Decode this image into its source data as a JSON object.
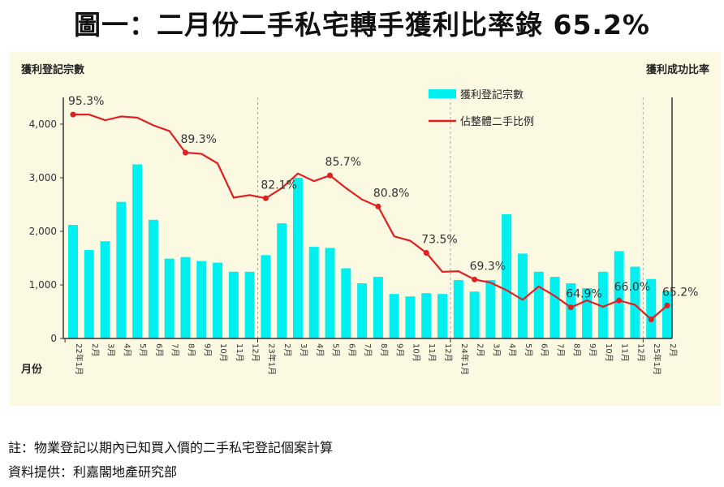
{
  "title": "圖一：二月份二手私宅轉手獲利比率錄 65.2%",
  "chart_data": {
    "type": "bar+line",
    "left_axis_label": "獲利登記宗數",
    "right_axis_label": "獲利成功比率",
    "x_axis_label": "月份",
    "ylim_left": [
      0,
      4500
    ],
    "ylim_right": [
      60,
      98
    ],
    "yticks_left": [
      "0",
      "1,000",
      "2,000",
      "3,000",
      "4,000"
    ],
    "categories": [
      "22年1月",
      "2月",
      "3月",
      "4月",
      "5月",
      "6月",
      "7月",
      "8月",
      "9月",
      "10月",
      "11月",
      "12月",
      "23年1月",
      "2月",
      "3月",
      "4月",
      "5月",
      "6月",
      "7月",
      "8月",
      "9月",
      "10月",
      "11月",
      "12月",
      "24年1月",
      "2月",
      "3月",
      "4月",
      "5月",
      "6月",
      "7月",
      "8月",
      "9月",
      "10月",
      "11月",
      "12月",
      "25年1月",
      "2月"
    ],
    "series": [
      {
        "name": "獲利登記宗數",
        "type": "bar",
        "color": "#00f0f0",
        "axis": "left",
        "values": [
          2120,
          1650,
          1815,
          2550,
          3250,
          2215,
          1490,
          1520,
          1445,
          1415,
          1245,
          1245,
          1555,
          2150,
          3000,
          1710,
          1690,
          1310,
          1030,
          1150,
          830,
          785,
          845,
          830,
          1090,
          875,
          1090,
          2320,
          1585,
          1245,
          1150,
          1030,
          940,
          1245,
          1630,
          1340,
          1110,
          880
        ]
      },
      {
        "name": "佔整體二手比例",
        "type": "line",
        "color": "#e02020",
        "axis": "right",
        "unit": "%",
        "values": [
          95.3,
          95.3,
          94.4,
          95.0,
          94.8,
          93.6,
          92.7,
          89.3,
          89.1,
          87.6,
          82.2,
          82.6,
          82.1,
          83.7,
          86.0,
          84.8,
          85.7,
          83.7,
          81.9,
          80.8,
          76.1,
          75.4,
          73.5,
          70.5,
          70.6,
          69.3,
          68.8,
          67.6,
          66.1,
          68.2,
          66.7,
          64.9,
          66.0,
          65.0,
          66.0,
          65.3,
          63.0,
          65.2
        ]
      }
    ],
    "data_labels": [
      {
        "index": 0,
        "text": "95.3%"
      },
      {
        "index": 7,
        "text": "89.3%"
      },
      {
        "index": 12,
        "text": "82.1%"
      },
      {
        "index": 16,
        "text": "85.7%"
      },
      {
        "index": 19,
        "text": "80.8%"
      },
      {
        "index": 22,
        "text": "73.5%"
      },
      {
        "index": 25,
        "text": "69.3%"
      },
      {
        "index": 31,
        "text": "64.9%"
      },
      {
        "index": 34,
        "text": "66.0%"
      },
      {
        "index": 37,
        "text": "65.2%"
      }
    ],
    "marker_indices": [
      0,
      7,
      12,
      16,
      19,
      22,
      25,
      31,
      34,
      36,
      37
    ],
    "legend_position": "top-center-right",
    "year_separators": true
  },
  "notes": {
    "note": "註：物業登記以期內已知買入價的二手私宅登記個案計算",
    "source": "資料提供：利嘉閣地產研究部"
  }
}
